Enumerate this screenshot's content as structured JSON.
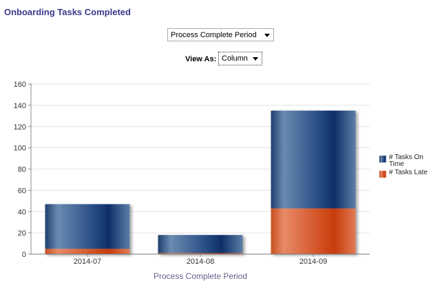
{
  "title": "Onboarding Tasks Completed",
  "period_select": {
    "value": "Process Complete Period"
  },
  "view_as": {
    "label": "View As:",
    "value": "Column"
  },
  "legend": [
    {
      "label": "# Tasks On Time",
      "color": "#24477a"
    },
    {
      "label": "# Tasks Late",
      "color": "#d4431a"
    }
  ],
  "chart_data": {
    "type": "bar",
    "stacked": true,
    "categories": [
      "2014-07",
      "2014-08",
      "2014-09"
    ],
    "series": [
      {
        "name": "# Tasks Late",
        "values": [
          5,
          1,
          43
        ],
        "color": "#d4431a"
      },
      {
        "name": "# Tasks On Time",
        "values": [
          42,
          17,
          92
        ],
        "color": "#24477a"
      }
    ],
    "xlabel": "Process Complete Period",
    "ylabel": "",
    "ylim": [
      0,
      160
    ],
    "yticks": [
      0,
      20,
      40,
      60,
      80,
      100,
      120,
      140,
      160
    ],
    "grid": true,
    "legend_position": "right"
  }
}
